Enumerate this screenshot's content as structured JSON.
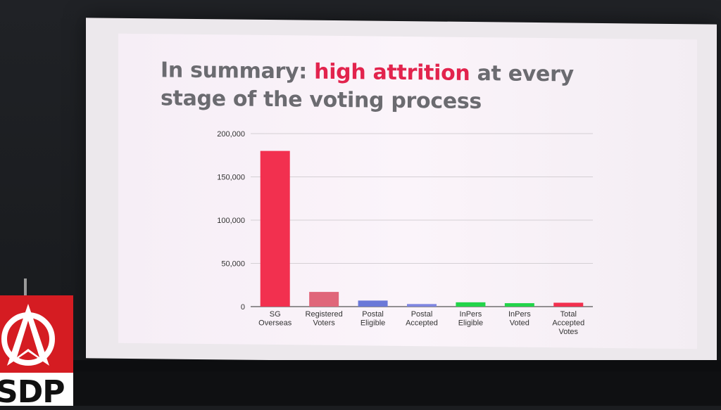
{
  "slide": {
    "title_part1": "In summary: ",
    "title_highlight": "high attrition",
    "title_part2": " at every stage of the voting process",
    "accent_color": "#e2234d"
  },
  "sign": {
    "text": "SDP",
    "color": "#d51c22"
  },
  "chart_data": {
    "type": "bar",
    "categories": [
      [
        "SG",
        "Overseas"
      ],
      [
        "Registered",
        "Voters"
      ],
      [
        "Postal",
        "Eligible"
      ],
      [
        "Postal",
        "Accepted"
      ],
      [
        "InPers",
        "Eligible"
      ],
      [
        "InPers",
        "Voted"
      ],
      [
        "Total",
        "Accepted",
        "Votes"
      ]
    ],
    "values": [
      180000,
      17000,
      7000,
      3000,
      5000,
      4000,
      4500
    ],
    "bar_colors": [
      "#f2304f",
      "#e0667a",
      "#6a78d8",
      "#7f86e0",
      "#23d44a",
      "#23d44a",
      "#f2304f"
    ],
    "yticks": [
      "200,000",
      "150,000",
      "100,000",
      "50,000",
      "0"
    ],
    "ylim": [
      0,
      200000
    ],
    "grid": true
  }
}
